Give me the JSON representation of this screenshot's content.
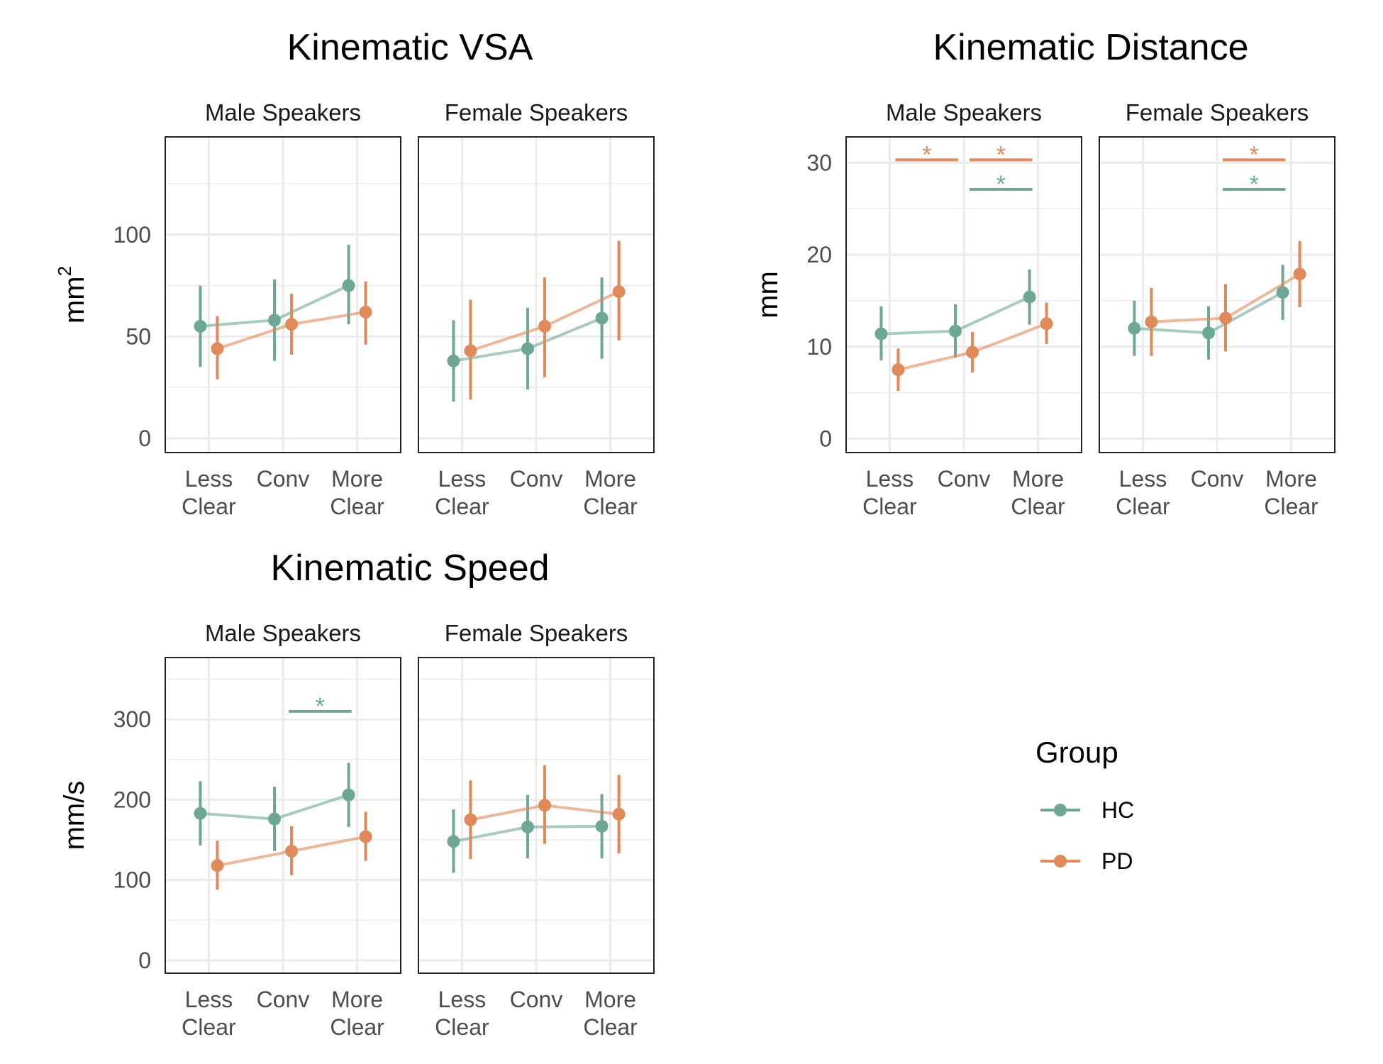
{
  "colors": {
    "HC": "#6fa796",
    "PD": "#e0895a",
    "grid": "#ebebeb",
    "panel_border": "#222222"
  },
  "legend": {
    "title": "Group",
    "items": [
      {
        "key": "HC",
        "label": "HC"
      },
      {
        "key": "PD",
        "label": "PD"
      }
    ]
  },
  "chart_data": [
    {
      "type": "line",
      "title": "Kinematic VSA",
      "ylabel": "mm",
      "ylabel_superscript": "2",
      "ylim": [
        -7,
        148
      ],
      "yticks": [
        0,
        50,
        100
      ],
      "categories": [
        [
          "Less",
          "Clear"
        ],
        [
          "Conv"
        ],
        [
          "More",
          "Clear"
        ]
      ],
      "facets": [
        {
          "label": "Male Speakers",
          "series": [
            {
              "name": "HC",
              "values": [
                55,
                58,
                75
              ],
              "lower": [
                35,
                38,
                56
              ],
              "upper": [
                75,
                78,
                95
              ]
            },
            {
              "name": "PD",
              "values": [
                44,
                56,
                62
              ],
              "lower": [
                29,
                41,
                46
              ],
              "upper": [
                60,
                71,
                77
              ]
            }
          ],
          "significance": []
        },
        {
          "label": "Female Speakers",
          "series": [
            {
              "name": "HC",
              "values": [
                38,
                44,
                59
              ],
              "lower": [
                18,
                24,
                39
              ],
              "upper": [
                58,
                64,
                79
              ]
            },
            {
              "name": "PD",
              "values": [
                43,
                55,
                72
              ],
              "lower": [
                19,
                30,
                48
              ],
              "upper": [
                68,
                79,
                97
              ]
            }
          ],
          "significance": []
        }
      ]
    },
    {
      "type": "line",
      "title": "Kinematic Distance",
      "ylabel": "mm",
      "ylabel_superscript": "",
      "ylim": [
        -1.5,
        32.8
      ],
      "yticks": [
        0,
        10,
        20,
        30
      ],
      "categories": [
        [
          "Less",
          "Clear"
        ],
        [
          "Conv"
        ],
        [
          "More",
          "Clear"
        ]
      ],
      "facets": [
        {
          "label": "Male Speakers",
          "series": [
            {
              "name": "HC",
              "values": [
                11.4,
                11.7,
                15.4
              ],
              "lower": [
                8.5,
                8.8,
                12.4
              ],
              "upper": [
                14.4,
                14.6,
                18.4
              ]
            },
            {
              "name": "PD",
              "values": [
                7.5,
                9.4,
                12.5
              ],
              "lower": [
                5.2,
                7.2,
                10.3
              ],
              "upper": [
                9.8,
                11.6,
                14.8
              ]
            }
          ],
          "significance": [
            {
              "group": "PD",
              "from": 0,
              "to": 1,
              "y": 30.3,
              "label": "*"
            },
            {
              "group": "PD",
              "from": 1,
              "to": 2,
              "y": 30.3,
              "label": "*"
            },
            {
              "group": "HC",
              "from": 1,
              "to": 2,
              "y": 27.1,
              "label": "*"
            }
          ]
        },
        {
          "label": "Female Speakers",
          "series": [
            {
              "name": "HC",
              "values": [
                12.0,
                11.5,
                15.9
              ],
              "lower": [
                9.0,
                8.6,
                12.9
              ],
              "upper": [
                15.0,
                14.4,
                18.9
              ]
            },
            {
              "name": "PD",
              "values": [
                12.7,
                13.1,
                17.9
              ],
              "lower": [
                9.0,
                9.5,
                14.3
              ],
              "upper": [
                16.4,
                16.8,
                21.5
              ]
            }
          ],
          "significance": [
            {
              "group": "PD",
              "from": 1,
              "to": 2,
              "y": 30.3,
              "label": "*"
            },
            {
              "group": "HC",
              "from": 1,
              "to": 2,
              "y": 27.1,
              "label": "*"
            }
          ]
        }
      ]
    },
    {
      "type": "line",
      "title": "Kinematic Speed",
      "ylabel": "mm/s",
      "ylabel_superscript": "",
      "ylim": [
        -16,
        377
      ],
      "yticks": [
        0,
        100,
        200,
        300
      ],
      "categories": [
        [
          "Less",
          "Clear"
        ],
        [
          "Conv"
        ],
        [
          "More",
          "Clear"
        ]
      ],
      "facets": [
        {
          "label": "Male Speakers",
          "series": [
            {
              "name": "HC",
              "values": [
                183,
                176,
                206
              ],
              "lower": [
                143,
                136,
                166
              ],
              "upper": [
                223,
                216,
                246
              ]
            },
            {
              "name": "PD",
              "values": [
                118,
                136,
                154
              ],
              "lower": [
                88,
                106,
                124
              ],
              "upper": [
                149,
                167,
                185
              ]
            }
          ],
          "significance": [
            {
              "group": "HC",
              "from": 1,
              "to": 2,
              "y": 310,
              "label": "*"
            }
          ]
        },
        {
          "label": "Female Speakers",
          "series": [
            {
              "name": "HC",
              "values": [
                148,
                166,
                167
              ],
              "lower": [
                109,
                127,
                127
              ],
              "upper": [
                188,
                206,
                207
              ]
            },
            {
              "name": "PD",
              "values": [
                175,
                193,
                182
              ],
              "lower": [
                126,
                145,
                133
              ],
              "upper": [
                224,
                243,
                231
              ]
            }
          ],
          "significance": []
        }
      ]
    }
  ]
}
